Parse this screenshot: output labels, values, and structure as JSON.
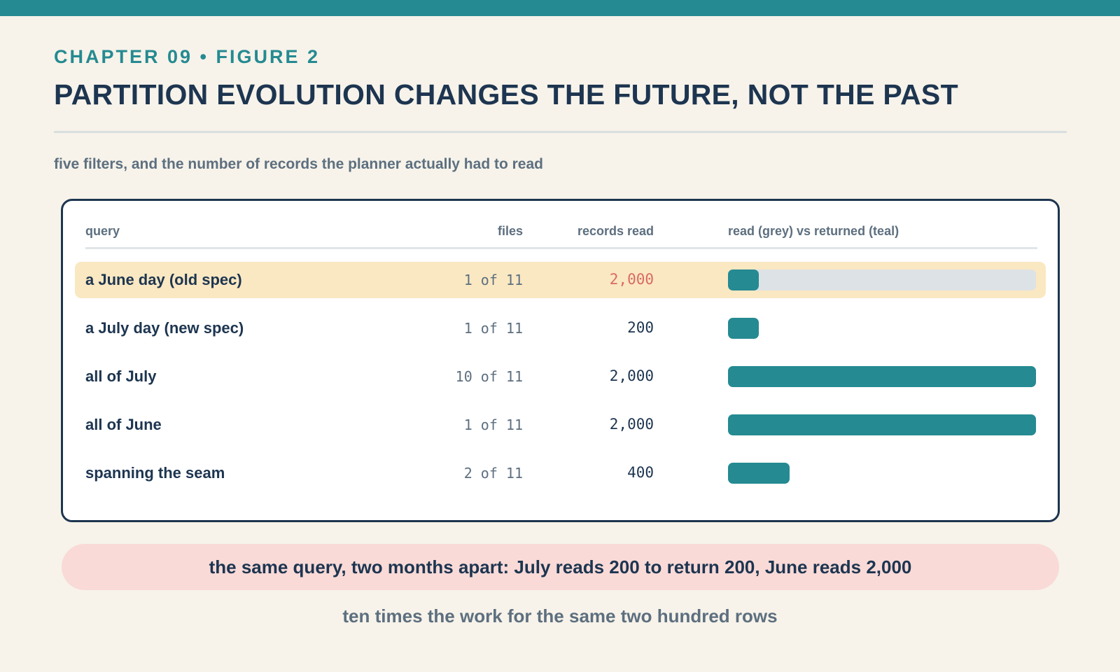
{
  "header": {
    "eyebrow": "CHAPTER 09 • FIGURE 2",
    "title": "PARTITION EVOLUTION CHANGES THE FUTURE, NOT THE PAST",
    "subtitle": "five filters, and the number of records the planner actually had to read"
  },
  "colors": {
    "accent": "#258a91",
    "ink": "#1d3550",
    "highlight_row": "#fae8c2",
    "highlight_value": "#d96b63",
    "read_track": "#dde2e6",
    "callout": "#f9dad7"
  },
  "table": {
    "columns": {
      "query": "query",
      "files": "files",
      "records": "records read",
      "bar": "read (grey) vs returned (teal)"
    }
  },
  "chart_data": {
    "type": "bar",
    "orientation": "horizontal",
    "categories": [
      "a June day (old spec)",
      "a July day (new spec)",
      "all of July",
      "all of June",
      "spanning the seam"
    ],
    "files": [
      "1 of 11",
      "1 of 11",
      "10 of 11",
      "1 of 11",
      "2 of 11"
    ],
    "records_read_labels": [
      "2,000",
      "200",
      "2,000",
      "2,000",
      "400"
    ],
    "highlighted_row": 0,
    "xlim": [
      0,
      2000
    ],
    "series": [
      {
        "name": "read",
        "values": [
          2000,
          200,
          2000,
          2000,
          400
        ]
      },
      {
        "name": "returned",
        "values": [
          200,
          200,
          2000,
          2000,
          400
        ]
      }
    ]
  },
  "callout": "the same query, two months apart: July reads 200 to return 200, June reads 2,000",
  "footnote": "ten times the work for the same two hundred rows"
}
